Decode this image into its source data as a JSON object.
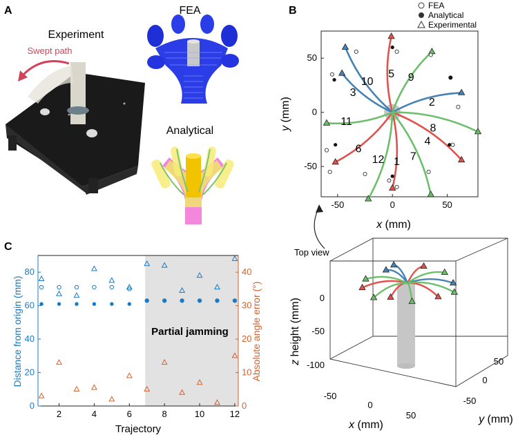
{
  "panels": {
    "A": {
      "letter": "A",
      "experiment_label": "Experiment",
      "swept_path_label": "Swept path",
      "fea_label": "FEA",
      "analytical_label": "Analytical"
    },
    "B": {
      "letter": "B",
      "top_view_label": "Top view"
    },
    "C": {
      "letter": "C",
      "region_label": "Partial jamming"
    }
  },
  "legend": {
    "fea": "FEA",
    "analytical": "Analytical",
    "experimental": "Experimental"
  },
  "colors": {
    "blue": "#4682b4",
    "red": "#e0524d",
    "green": "#6cbf6a",
    "orange": "#d95f2a",
    "axis_blue": "#1a7ac4",
    "shade": "#e2e2e2"
  },
  "chart_data": [
    {
      "id": "B_top",
      "type": "scatter",
      "xlabel_var": "x",
      "xlabel_unit": " (mm)",
      "ylabel_var": "y",
      "ylabel_unit": " (mm)",
      "xlim": [
        -65,
        78
      ],
      "ylim": [
        -78,
        75
      ],
      "xticks": [
        -50,
        0,
        50
      ],
      "yticks": [
        -50,
        0,
        50
      ],
      "grid": false,
      "trajectories": [
        {
          "id": "1",
          "color": "red",
          "label_at": [
            4,
            -45
          ],
          "end": [
            0,
            -70
          ]
        },
        {
          "id": "2",
          "color": "blue",
          "label_at": [
            36,
            10
          ],
          "end": [
            63,
            18
          ]
        },
        {
          "id": "3",
          "color": "blue",
          "label_at": [
            -36,
            19
          ],
          "end": [
            -46,
            36
          ]
        },
        {
          "id": "4",
          "color": "red",
          "label_at": [
            32,
            -26
          ],
          "end": [
            63,
            -44
          ]
        },
        {
          "id": "5",
          "color": "red",
          "label_at": [
            -1,
            36
          ],
          "end": [
            -1,
            70
          ]
        },
        {
          "id": "6",
          "color": "red",
          "label_at": [
            -31,
            -33
          ],
          "end": [
            -52,
            -46
          ]
        },
        {
          "id": "7",
          "color": "green",
          "label_at": [
            19,
            -40
          ],
          "end": [
            35,
            -76
          ]
        },
        {
          "id": "8",
          "color": "green",
          "label_at": [
            37,
            -14
          ],
          "end": [
            78,
            -18
          ]
        },
        {
          "id": "9",
          "color": "green",
          "label_at": [
            17,
            33
          ],
          "end": [
            36,
            56
          ]
        },
        {
          "id": "10",
          "color": "blue",
          "label_at": [
            -23,
            29
          ],
          "end": [
            -43,
            60
          ]
        },
        {
          "id": "11",
          "color": "green",
          "label_at": [
            -42,
            -8
          ],
          "end": [
            -60,
            -10
          ]
        },
        {
          "id": "12",
          "color": "green",
          "label_at": [
            -13,
            -43
          ],
          "end": [
            -22,
            -80
          ]
        }
      ],
      "fea_points": [
        [
          -33,
          56
        ],
        [
          -55,
          35
        ],
        [
          -60,
          -35
        ],
        [
          -57,
          -55
        ],
        [
          -25,
          -57
        ],
        [
          -3,
          -63
        ],
        [
          4,
          -69
        ],
        [
          33,
          -55
        ],
        [
          55,
          -30
        ],
        [
          60,
          5
        ],
        [
          53,
          32
        ],
        [
          35,
          53
        ],
        [
          4,
          56
        ]
      ],
      "analytical_points": [
        [
          0,
          -59
        ],
        [
          0,
          60
        ],
        [
          -53,
          30
        ],
        [
          -52,
          -30
        ],
        [
          52,
          -30
        ],
        [
          53,
          32
        ]
      ]
    },
    {
      "id": "B_3d",
      "type": "scatter",
      "xlabel_var": "x",
      "xlabel_unit": " (mm)",
      "ylabel_var": "y",
      "ylabel_unit": " (mm)",
      "zlabel_var": "z",
      "zlabel_unit": " height (mm)",
      "x_ticks": [
        -50,
        0,
        50
      ],
      "y_ticks": [
        -50,
        0,
        50
      ],
      "z_ticks": [
        0,
        -50,
        -100
      ]
    },
    {
      "id": "C",
      "type": "scatter",
      "xlabel": "Trajectory",
      "ylabel_left": "Distance from origin (mm)",
      "ylabel_right": "Absolute angle error (°)",
      "xlim": [
        0.8,
        12.2
      ],
      "ylim_left": [
        0,
        90
      ],
      "ylim_right": [
        0,
        45
      ],
      "xticks": [
        2,
        4,
        6,
        8,
        10,
        12
      ],
      "yticks_left": [
        0,
        20,
        40,
        60,
        80
      ],
      "yticks_right": [
        0,
        10,
        20,
        30,
        40
      ],
      "shaded_x_range": [
        6.9,
        12.2
      ],
      "grid": false,
      "x": [
        1,
        2,
        3,
        4,
        5,
        6,
        7,
        8,
        9,
        10,
        11,
        12
      ],
      "series": [
        {
          "name": "FEA",
          "axis": "left",
          "marker": "open-circle",
          "values": [
            71,
            71,
            71,
            71,
            71,
            70,
            63,
            63,
            63,
            63,
            63,
            63
          ]
        },
        {
          "name": "Analytical",
          "axis": "left",
          "marker": "filled-circle",
          "values": [
            61,
            61,
            61,
            61,
            61,
            61,
            63,
            63,
            63,
            63,
            63,
            63
          ]
        },
        {
          "name": "Experimental",
          "axis": "left",
          "marker": "open-triangle",
          "values": [
            76,
            67,
            66,
            82,
            75,
            71,
            85,
            84,
            69,
            78,
            71,
            88
          ]
        },
        {
          "axis": "right",
          "marker": "open-triangle",
          "values": [
            3,
            13,
            5,
            5.5,
            2,
            9,
            5,
            13,
            4,
            7,
            1,
            15
          ]
        }
      ]
    }
  ]
}
